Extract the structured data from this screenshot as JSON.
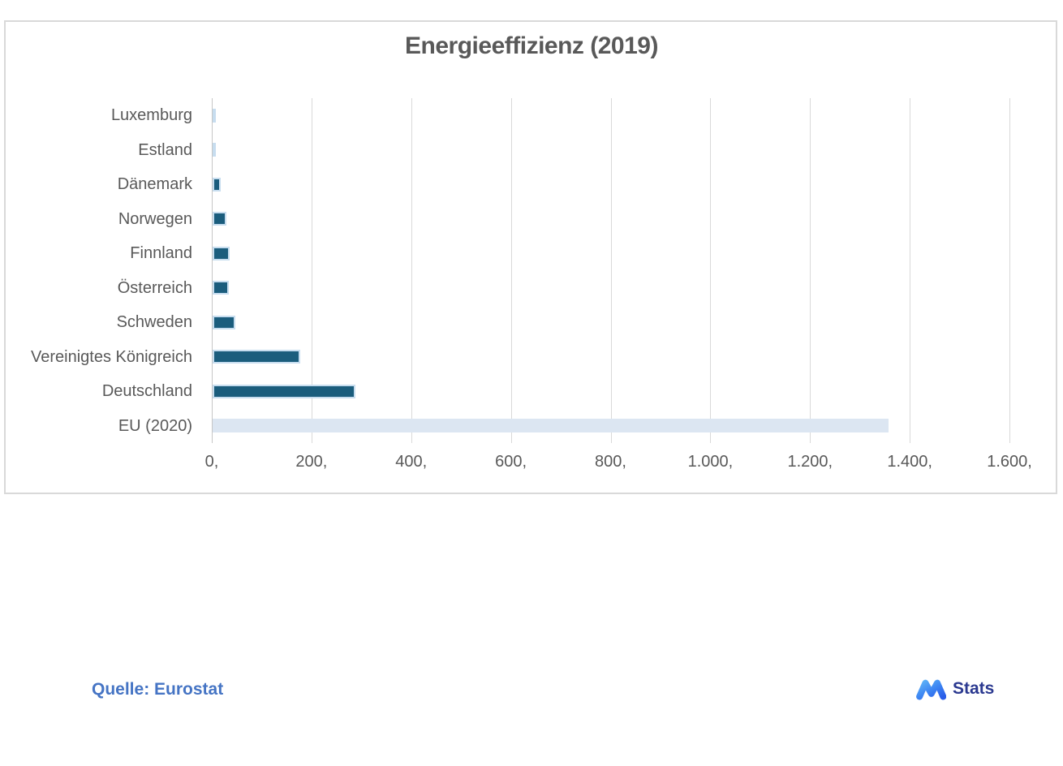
{
  "chart_data": {
    "type": "bar",
    "orientation": "horizontal",
    "title": "Energieeffizienz (2019)",
    "categories": [
      "Luxemburg",
      "Estland",
      "Dänemark",
      "Norwegen",
      "Finnland",
      "Österreich",
      "Schweden",
      "Vereinigtes Königreich",
      "Deutschland",
      "EU (2020)"
    ],
    "values": [
      5,
      5,
      16,
      27,
      34,
      33,
      46,
      175,
      286,
      1356
    ],
    "xlabel": "",
    "ylabel": "",
    "xlim": [
      0,
      1600
    ],
    "x_tick_step": 200,
    "x_tick_labels": [
      "0,",
      "200,",
      "400,",
      "600,",
      "800,",
      "1.000,",
      "1.200,",
      "1.400,",
      "1.600,"
    ],
    "grid": true,
    "legend": false,
    "bar_color": "#1b5d7d",
    "highlight_index": 9,
    "highlight_color": "#dce6f2"
  },
  "footer": {
    "source_label": "Quelle: Eurostat",
    "brand_label": "Stats",
    "brand_icon": "m-wave-logo-icon"
  },
  "colors": {
    "title_text": "#595959",
    "axis_text": "#595959",
    "gridline": "#d9d9d9",
    "chart_border": "#d9d9d9",
    "source_text": "#4574c4",
    "brand_text": "#2b3990",
    "logo_gradient_start": "#5bb0f7",
    "logo_gradient_end": "#2a5de8"
  }
}
